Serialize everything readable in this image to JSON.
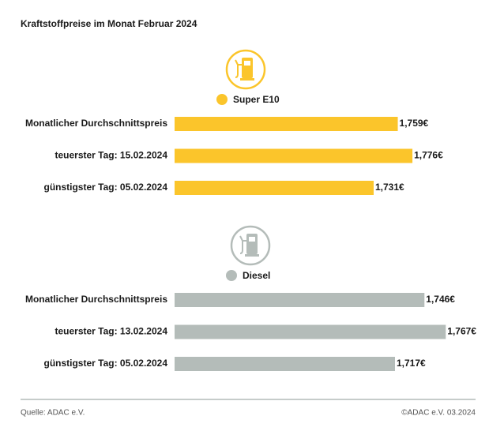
{
  "title": "Kraftstoffpreise im Monat Februar 2024",
  "source": "Quelle: ADAC e.V.",
  "copyright": "©ADAC e.V. 03.2024",
  "chart_data": [
    {
      "type": "hbar",
      "categories": [
        "Monatlicher Durchschnittspreis",
        "teuerster Tag: 15.02.2024",
        "günstigster Tag: 05.02.2024"
      ],
      "series": [
        {
          "name": "Super E10",
          "color": "#fbc52b",
          "values": [
            1.759,
            1.776,
            1.731
          ],
          "value_labels": [
            "1,759€",
            "1,776€",
            "1,731€"
          ]
        }
      ],
      "xlim": [
        1.5,
        1.83
      ]
    },
    {
      "type": "hbar",
      "categories": [
        "Monatlicher Durchschnittspreis",
        "teuerster Tag: 13.02.2024",
        "günstigster Tag: 05.02.2024"
      ],
      "series": [
        {
          "name": "Diesel",
          "color": "#b4bcb9",
          "values": [
            1.746,
            1.767,
            1.717
          ],
          "value_labels": [
            "1,746€",
            "1,767€",
            "1,717€"
          ]
        }
      ],
      "xlim": [
        1.5,
        1.78
      ]
    }
  ]
}
